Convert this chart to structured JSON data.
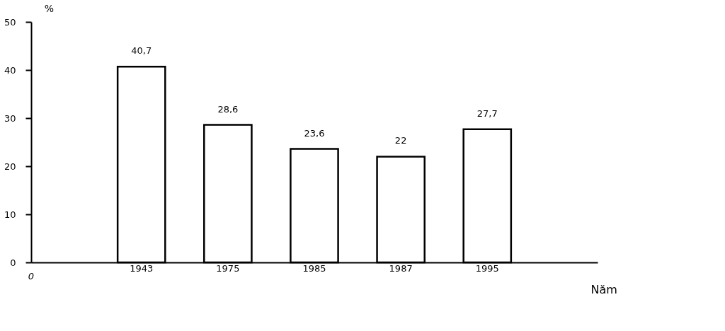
{
  "chart_data": {
    "type": "bar",
    "categories": [
      "1943",
      "1975",
      "1985",
      "1987",
      "1995"
    ],
    "values": [
      40.7,
      28.6,
      23.6,
      22,
      27.7
    ],
    "value_labels": [
      "40,7",
      "28,6",
      "23,6",
      "22",
      "27,7"
    ],
    "color": "#ffffff",
    "xlabel": "Năm",
    "ylabel": "%",
    "ylim": [
      0,
      50
    ],
    "yticks": [
      0,
      10,
      20,
      30,
      40,
      50
    ],
    "annotations": [
      "0"
    ]
  }
}
